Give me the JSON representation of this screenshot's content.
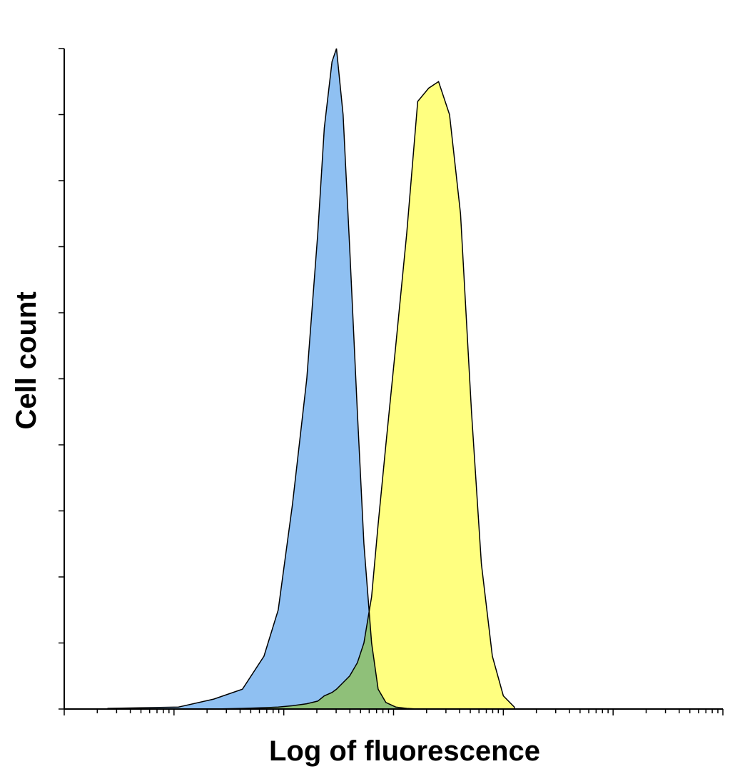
{
  "chart_data": {
    "type": "area",
    "xlabel": "Log of fluorescence",
    "ylabel": "Cell count",
    "x": [
      2.5,
      11,
      23,
      42,
      66,
      89,
      120,
      162,
      204,
      234,
      275,
      302,
      347,
      398,
      468,
      537,
      631,
      724,
      851,
      1047,
      1318,
      1660,
      2089,
      2570,
      3236,
      4074,
      5129,
      6310,
      7943,
      10000,
      12589
    ],
    "series": [
      {
        "color": "#8fc0f2",
        "values": [
          0.1,
          0.3,
          1.5,
          3,
          8,
          15,
          31,
          50,
          72,
          88,
          98,
          100,
          90,
          70,
          45,
          25,
          10,
          3,
          1,
          0.3,
          0.1,
          0,
          0,
          0,
          0,
          0,
          0,
          0,
          0,
          0,
          0
        ]
      },
      {
        "color": "#ffff80",
        "values": [
          0,
          0,
          0,
          0.1,
          0.2,
          0.3,
          0.5,
          0.8,
          1.2,
          2,
          2.5,
          3,
          4,
          5,
          7,
          10,
          17,
          28,
          40,
          55,
          72,
          92,
          94,
          95,
          90,
          75,
          45,
          22,
          8,
          2,
          0.3
        ]
      }
    ],
    "xscale": "log",
    "xlim": [
      1,
      1000000
    ],
    "xticks": [
      1,
      2,
      3,
      4,
      5,
      6,
      7,
      8,
      9,
      10,
      20,
      30,
      40,
      50,
      60,
      70,
      80,
      90,
      100,
      200,
      300,
      400,
      500,
      600,
      700,
      800,
      900,
      1000,
      2000,
      3000,
      4000,
      5000,
      6000,
      7000,
      8000,
      9000,
      10000,
      20000,
      30000,
      40000,
      50000,
      60000,
      70000,
      80000,
      90000,
      100000,
      200000,
      300000,
      400000,
      500000,
      600000,
      700000,
      800000,
      900000,
      1000000
    ],
    "ylim": [
      0,
      100
    ],
    "yticks": [
      0,
      10,
      20,
      30,
      40,
      50,
      60,
      70,
      80,
      90,
      100
    ]
  }
}
